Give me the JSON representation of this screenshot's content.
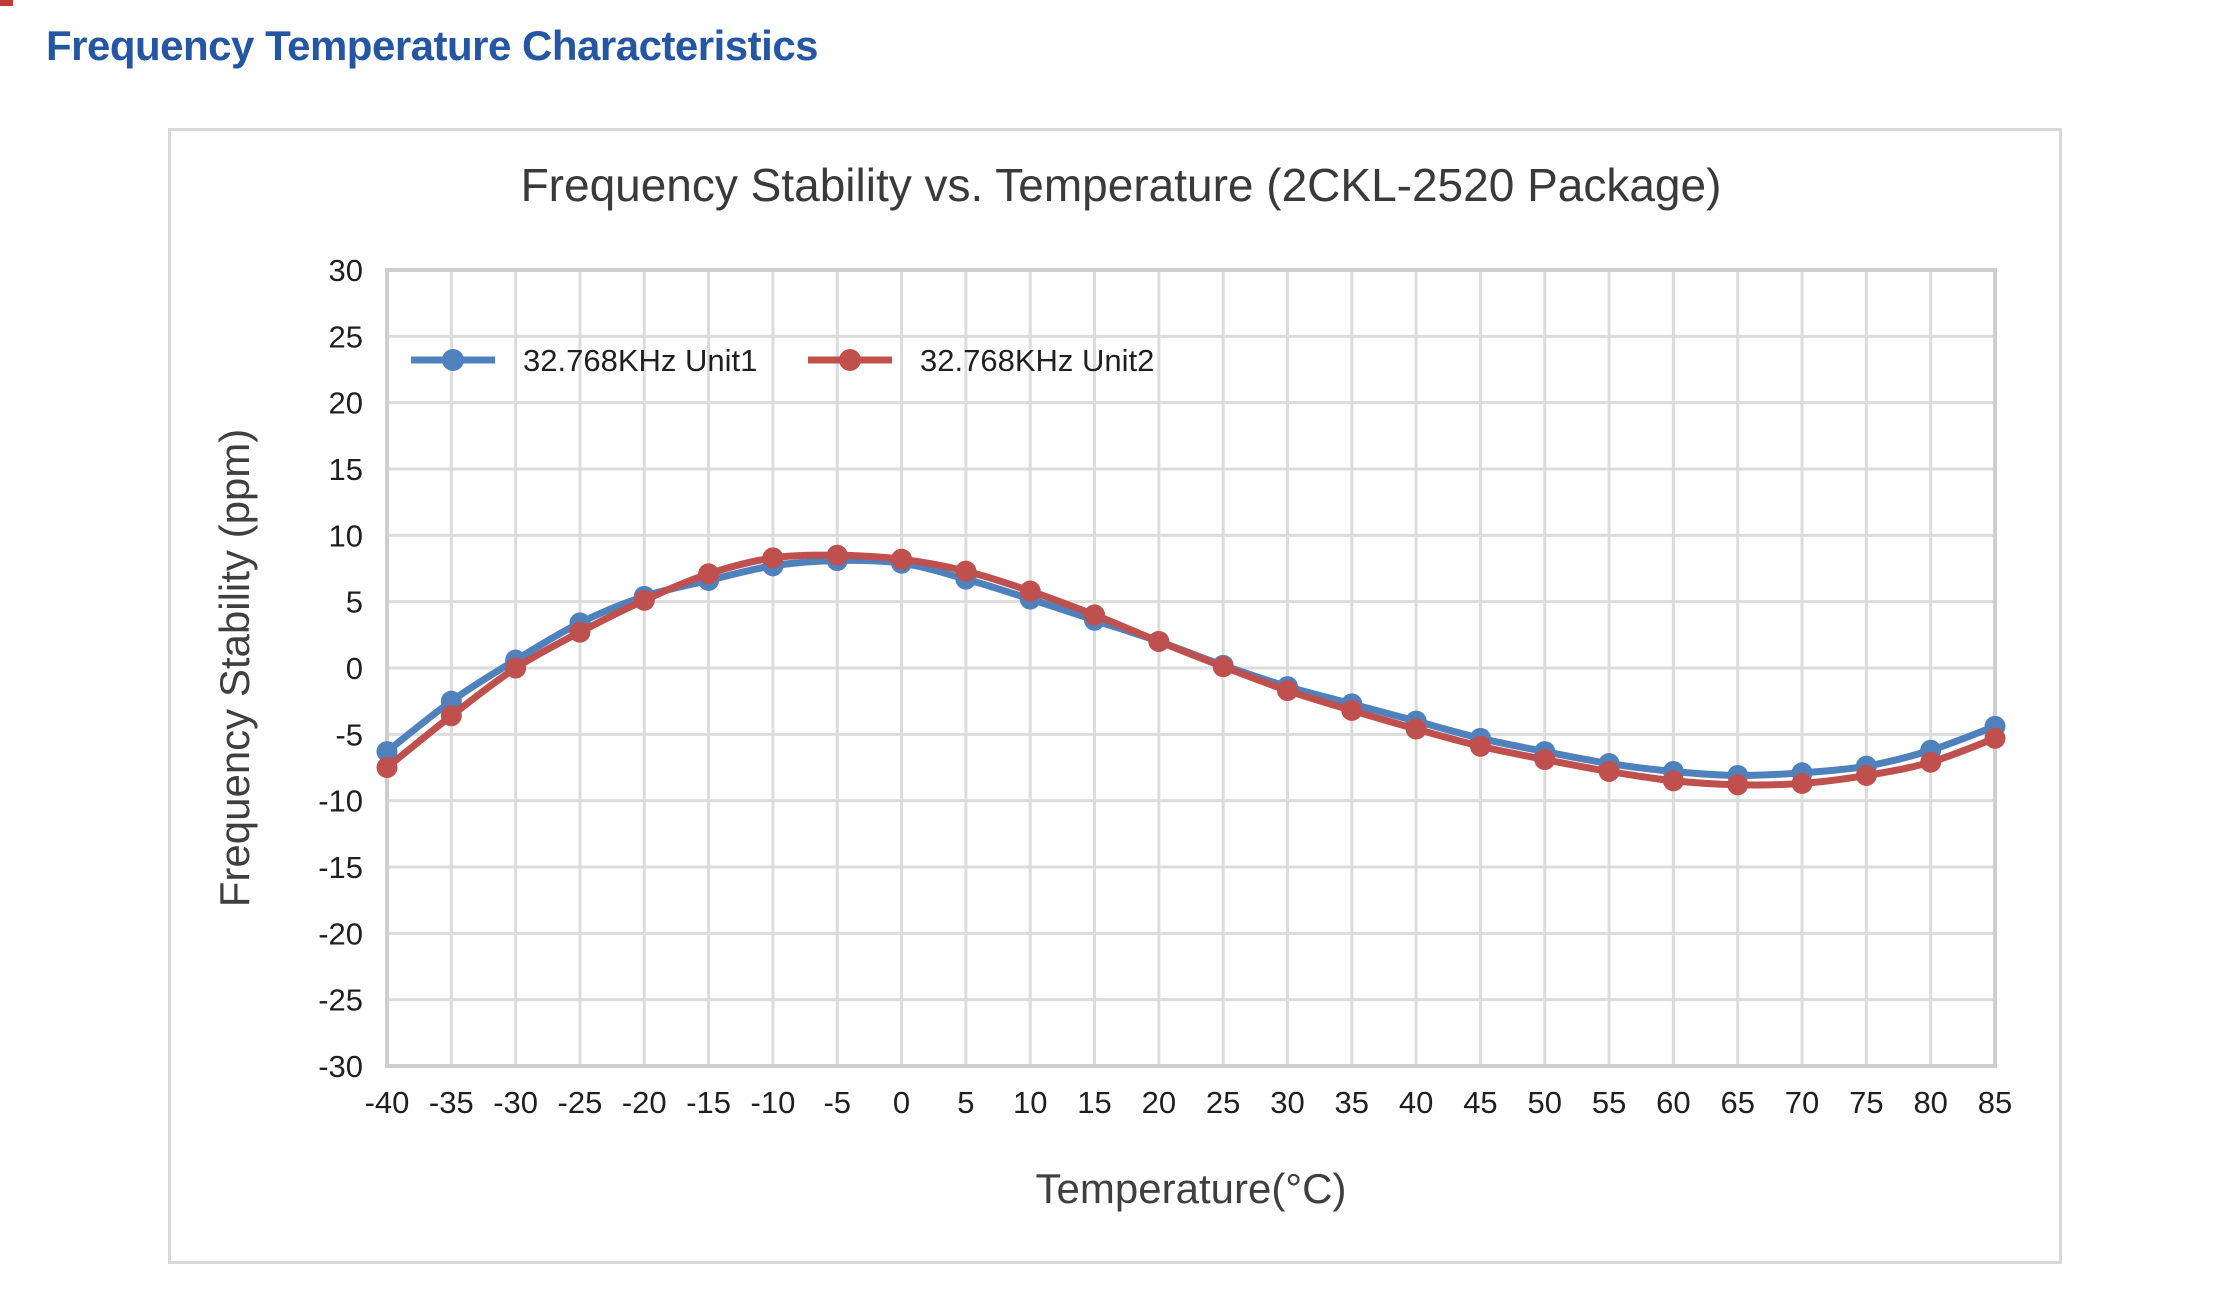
{
  "page": {
    "heading": "Frequency Temperature Characteristics",
    "heading_color": "#2456A4",
    "corner_mark_color": "#C23B36"
  },
  "chart": {
    "title": "Frequency Stability vs. Temperature (2CKL-2520 Package)",
    "x_axis_title": "Temperature(°C)",
    "y_axis_title": "Frequency Stability (ppm)",
    "legend": [
      {
        "label": "32.768KHz Unit1",
        "color": "#4F81BD"
      },
      {
        "label": "32.768KHz Unit2",
        "color": "#C0504D"
      }
    ],
    "colors": {
      "series_unit1": "#4F81BD",
      "series_unit2": "#C0504D",
      "gridline": "#DCDCDC",
      "plot_frame": "#CFCFCF",
      "tick_label": "#1F1F1F",
      "axis_title": "#3F3F3F",
      "chart_title": "#3A3A3A"
    }
  },
  "chart_data": {
    "type": "line",
    "title": "Frequency Stability vs. Temperature (2CKL-2520 Package)",
    "xlabel": "Temperature(°C)",
    "ylabel": "Frequency Stability (ppm)",
    "x": [
      -40,
      -35,
      -30,
      -25,
      -20,
      -15,
      -10,
      -5,
      0,
      5,
      10,
      15,
      20,
      25,
      30,
      35,
      40,
      45,
      50,
      55,
      60,
      65,
      70,
      75,
      80,
      85
    ],
    "series": [
      {
        "name": "32.768KHz Unit1",
        "color": "#4F81BD",
        "values": [
          -6.3,
          -2.5,
          0.6,
          3.4,
          5.4,
          6.6,
          7.7,
          8.1,
          7.9,
          6.7,
          5.2,
          3.6,
          2.0,
          0.2,
          -1.4,
          -2.7,
          -4.0,
          -5.3,
          -6.3,
          -7.2,
          -7.8,
          -8.1,
          -7.9,
          -7.4,
          -6.2,
          -4.4
        ]
      },
      {
        "name": "32.768KHz Unit2",
        "color": "#C0504D",
        "values": [
          -7.5,
          -3.6,
          0.0,
          2.7,
          5.1,
          7.1,
          8.3,
          8.5,
          8.2,
          7.3,
          5.8,
          4.0,
          2.0,
          0.1,
          -1.7,
          -3.2,
          -4.6,
          -5.9,
          -6.9,
          -7.8,
          -8.5,
          -8.8,
          -8.7,
          -8.1,
          -7.1,
          -5.3
        ]
      }
    ],
    "xlim": [
      -40,
      85
    ],
    "ylim": [
      -30,
      30
    ],
    "x_tick_step": 5,
    "y_tick_step": 5,
    "grid": true,
    "smooth": true,
    "markers": "circle",
    "legend_position": "inside top-left"
  }
}
